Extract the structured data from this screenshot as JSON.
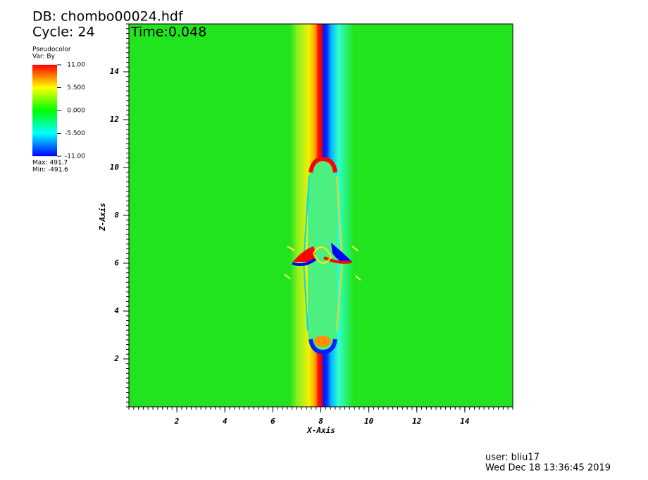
{
  "chart_data": {
    "type": "pseudocolor",
    "title": "DB: chombo00024.hdf",
    "cycle": "Cycle: 24",
    "time": "Time:0.048",
    "legend_title": "Pseudocolor",
    "legend_var": "Var: By",
    "legend_max": "Max:  491.7",
    "legend_min": "Min: -491.6",
    "xlabel": "X-Axis",
    "ylabel": "Z-Axis",
    "xlim": [
      0,
      16
    ],
    "ylim": [
      0,
      16
    ],
    "xticks": [
      2,
      4,
      6,
      8,
      10,
      12,
      14
    ],
    "yticks": [
      2,
      4,
      6,
      8,
      10,
      12,
      14
    ],
    "colorbar_lim": [
      -11,
      11
    ],
    "colorbar_ticks": [
      {
        "value": 11,
        "label": "11.00"
      },
      {
        "value": 5.5,
        "label": "5.500"
      },
      {
        "value": 0,
        "label": "0.000"
      },
      {
        "value": -5.5,
        "label": "-5.500"
      },
      {
        "value": -11,
        "label": "-11.00"
      }
    ],
    "user": "user: bliu17",
    "date": "Wed Dec 18 13:36:45 2019"
  }
}
